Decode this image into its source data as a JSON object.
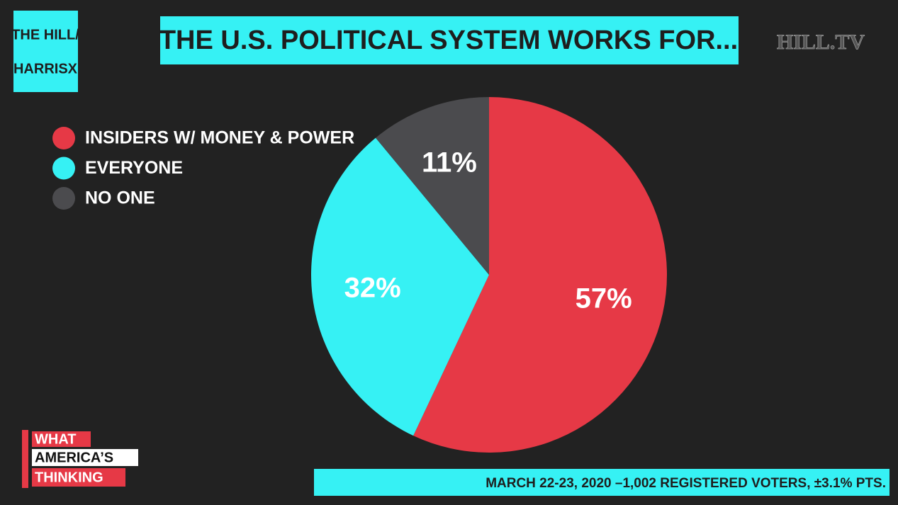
{
  "chart_data": {
    "type": "pie",
    "title": "THE U.S. POLITICAL SYSTEM WORKS FOR...",
    "categories": [
      "INSIDERS W/ MONEY & POWER",
      "EVERYONE",
      "NO ONE"
    ],
    "values": [
      57,
      32,
      11
    ],
    "value_labels": [
      "57%",
      "32%",
      "11%"
    ],
    "colors": [
      "#e63946",
      "#36f1f4",
      "#4b4b4e"
    ],
    "legend": "top-left"
  },
  "branding": {
    "logo": [
      "THE HILL/",
      "HARRISX"
    ],
    "watermark": "HILL.TV",
    "show": [
      "WHAT",
      "AMERICA’S",
      "THINKING"
    ]
  },
  "footer": "MARCH 22-23, 2020 –1,002 REGISTERED VOTERS, ±3.1% PTS."
}
